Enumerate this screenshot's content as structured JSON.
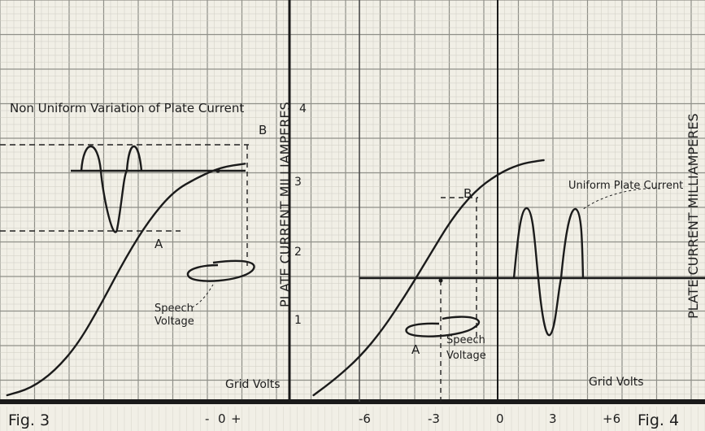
{
  "chart_data": [
    {
      "type": "line",
      "figure_label": "Fig. 3",
      "annotation": "Non Uniform Variation of Plate Current",
      "ylabel": "PLATE CURRENT MILLIAMPERES",
      "xlabel": "Grid Volts",
      "x_ticks": [
        "-",
        "0",
        "+"
      ],
      "y_ticks": [
        "1",
        "2",
        "3",
        "4"
      ],
      "point_labels": [
        "A",
        "B"
      ],
      "input_label_line1": "Speech",
      "input_label_line2": "Voltage",
      "ylim": [
        0,
        4.8
      ],
      "series": [
        {
          "x": [
            -13.5,
            -12,
            -10.5,
            -9,
            -7.5,
            -6,
            -4.5,
            -3,
            -1.5,
            0,
            1.5
          ],
          "y": [
            0,
            0.1,
            0.35,
            0.75,
            1.35,
            2.0,
            2.55,
            2.95,
            3.15,
            3.3,
            3.35
          ]
        }
      ],
      "A": [
        -3.0,
        1.95
      ],
      "B": [
        0.5,
        3.35
      ]
    },
    {
      "type": "line",
      "figure_label": "Fig. 4",
      "annotation": "Uniform Plate Current",
      "ylabel": "PLATE CURRENT MILLIAMPERES",
      "xlabel": "Grid Volts",
      "x_ticks": [
        "-6",
        "-3",
        "0",
        "3",
        "+6"
      ],
      "y_ticks": [
        "1",
        "2",
        "3",
        "4"
      ],
      "point_labels": [
        "A",
        "B"
      ],
      "input_label_line1": "Speech",
      "input_label_line2": "Voltage",
      "ylim": [
        0,
        4.8
      ],
      "series": [
        {
          "x": [
            -8.0,
            -7.0,
            -6.0,
            -5.0,
            -4.0,
            -3.0,
            -2.0,
            -1.0,
            0.0,
            1.0,
            2.0
          ],
          "y": [
            0,
            0.25,
            0.55,
            0.95,
            1.45,
            2.0,
            2.55,
            2.95,
            3.2,
            3.35,
            3.4
          ]
        }
      ],
      "A": [
        -3.0,
        1.2
      ],
      "B": [
        -1.5,
        2.7
      ]
    }
  ]
}
